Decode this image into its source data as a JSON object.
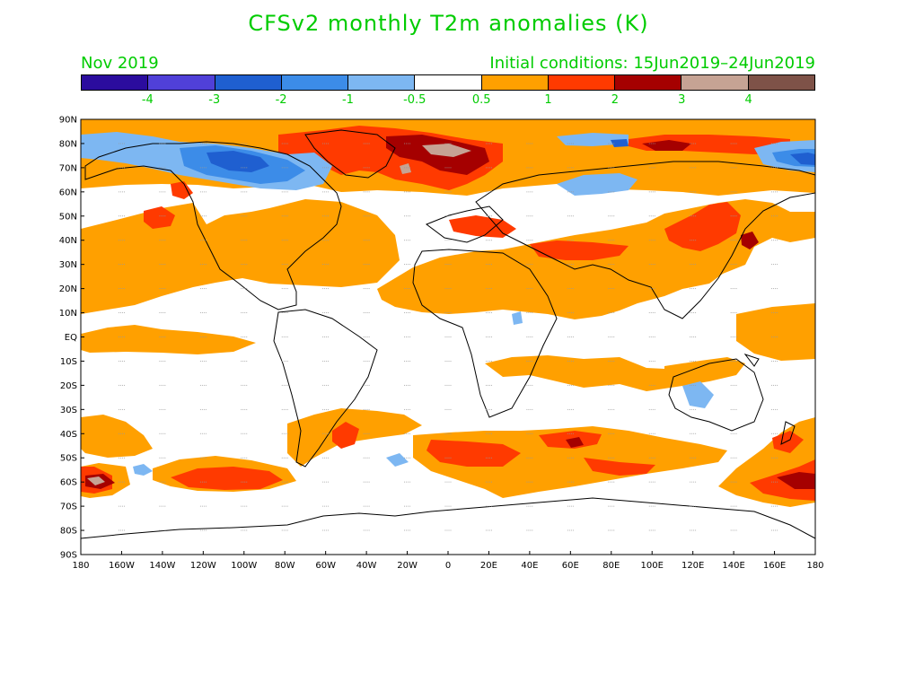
{
  "title": "CFSv2 monthly T2m anomalies (K)",
  "month": "Nov 2019",
  "initial_conditions": "Initial conditions: 15Jun2019–24Jun2019",
  "colorbar": {
    "colors": [
      "#2b0c9e",
      "#5040d8",
      "#1f5fd0",
      "#3c8ce8",
      "#7db7f2",
      "#ffffff",
      "#ffa000",
      "#ff3a00",
      "#a50000",
      "#c6a394",
      "#7e5248"
    ],
    "labels": [
      "-4",
      "-3",
      "-2",
      "-1",
      "-0.5",
      "0.5",
      "1",
      "2",
      "3",
      "4"
    ]
  },
  "map": {
    "lat_labels": [
      "90N",
      "80N",
      "70N",
      "60N",
      "50N",
      "40N",
      "30N",
      "20N",
      "10N",
      "EQ",
      "10S",
      "20S",
      "30S",
      "40S",
      "50S",
      "60S",
      "70S",
      "80S",
      "90S"
    ],
    "lon_labels": [
      "180",
      "160W",
      "140W",
      "120W",
      "100W",
      "80W",
      "60W",
      "40W",
      "20W",
      "0",
      "20E",
      "40E",
      "60E",
      "80E",
      "100E",
      "120E",
      "140E",
      "160E",
      "180"
    ]
  }
}
